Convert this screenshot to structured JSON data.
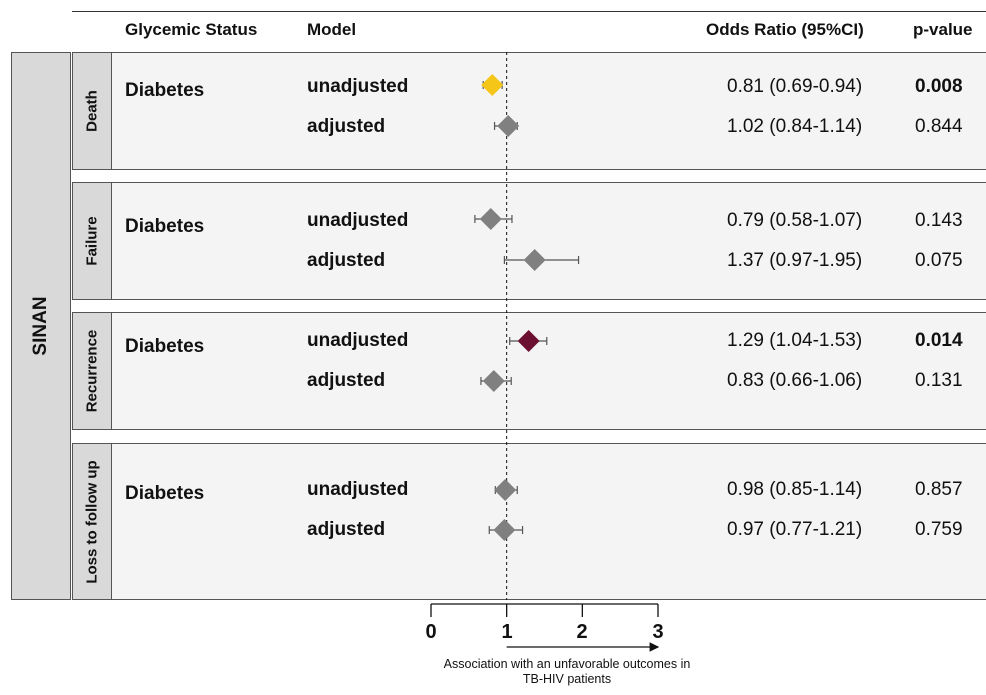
{
  "headers": {
    "glycemic_status": "Glycemic Status",
    "model": "Model",
    "odds_ratio": "Odds Ratio (95%CI)",
    "p_value": "p-value"
  },
  "database": "SINAN",
  "panels": [
    {
      "outcome": "Death",
      "glycemic_status": "Diabetes",
      "rows": [
        {
          "model": "unadjusted",
          "or_text": "0.81 (0.69-0.94)",
          "p": "0.008",
          "p_bold": true,
          "or": 0.81,
          "lo": 0.69,
          "hi": 0.94,
          "color": "#f5c518"
        },
        {
          "model": "adjusted",
          "or_text": "1.02 (0.84-1.14)",
          "p": "0.844",
          "p_bold": false,
          "or": 1.02,
          "lo": 0.84,
          "hi": 1.14,
          "color": "#808080"
        }
      ]
    },
    {
      "outcome": "Failure",
      "glycemic_status": "Diabetes",
      "rows": [
        {
          "model": "unadjusted",
          "or_text": "0.79 (0.58-1.07)",
          "p": "0.143",
          "p_bold": false,
          "or": 0.79,
          "lo": 0.58,
          "hi": 1.07,
          "color": "#808080"
        },
        {
          "model": "adjusted",
          "or_text": "1.37 (0.97-1.95)",
          "p": "0.075",
          "p_bold": false,
          "or": 1.37,
          "lo": 0.97,
          "hi": 1.95,
          "color": "#808080"
        }
      ]
    },
    {
      "outcome": "Recurrence",
      "glycemic_status": "Diabetes",
      "rows": [
        {
          "model": "unadjusted",
          "or_text": "1.29 (1.04-1.53)",
          "p": "0.014",
          "p_bold": true,
          "or": 1.29,
          "lo": 1.04,
          "hi": 1.53,
          "color": "#6b1030"
        },
        {
          "model": "adjusted",
          "or_text": "0.83 (0.66-1.06)",
          "p": "0.131",
          "p_bold": false,
          "or": 0.83,
          "lo": 0.66,
          "hi": 1.06,
          "color": "#808080"
        }
      ]
    },
    {
      "outcome": "Loss to follow up",
      "glycemic_status": "Diabetes",
      "rows": [
        {
          "model": "unadjusted",
          "or_text": "0.98 (0.85-1.14)",
          "p": "0.857",
          "p_bold": false,
          "or": 0.98,
          "lo": 0.85,
          "hi": 1.14,
          "color": "#808080"
        },
        {
          "model": "adjusted",
          "or_text": "0.97 (0.77-1.21)",
          "p": "0.759",
          "p_bold": false,
          "or": 0.97,
          "lo": 0.77,
          "hi": 1.21,
          "color": "#808080"
        }
      ]
    }
  ],
  "axis": {
    "ticks": [
      "0",
      "1",
      "2",
      "3"
    ],
    "note": "Association with an unfavorable outcomes in TB-HIV patients"
  },
  "chart_data": {
    "type": "scatter",
    "xlim": [
      0,
      3
    ],
    "reference_line": 1,
    "xticks": [
      0,
      1,
      2,
      3
    ],
    "series": [
      {
        "category": "Death",
        "model": "unadjusted",
        "x": 0.81,
        "ci": [
          0.69,
          0.94
        ]
      },
      {
        "category": "Death",
        "model": "adjusted",
        "x": 1.02,
        "ci": [
          0.84,
          1.14
        ]
      },
      {
        "category": "Failure",
        "model": "unadjusted",
        "x": 0.79,
        "ci": [
          0.58,
          1.07
        ]
      },
      {
        "category": "Failure",
        "model": "adjusted",
        "x": 1.37,
        "ci": [
          0.97,
          1.95
        ]
      },
      {
        "category": "Recurrence",
        "model": "unadjusted",
        "x": 1.29,
        "ci": [
          1.04,
          1.53
        ]
      },
      {
        "category": "Recurrence",
        "model": "adjusted",
        "x": 0.83,
        "ci": [
          0.66,
          1.06
        ]
      },
      {
        "category": "Loss to follow up",
        "model": "unadjusted",
        "x": 0.98,
        "ci": [
          0.85,
          1.14
        ]
      },
      {
        "category": "Loss to follow up",
        "model": "adjusted",
        "x": 0.97,
        "ci": [
          0.77,
          1.21
        ]
      }
    ]
  }
}
